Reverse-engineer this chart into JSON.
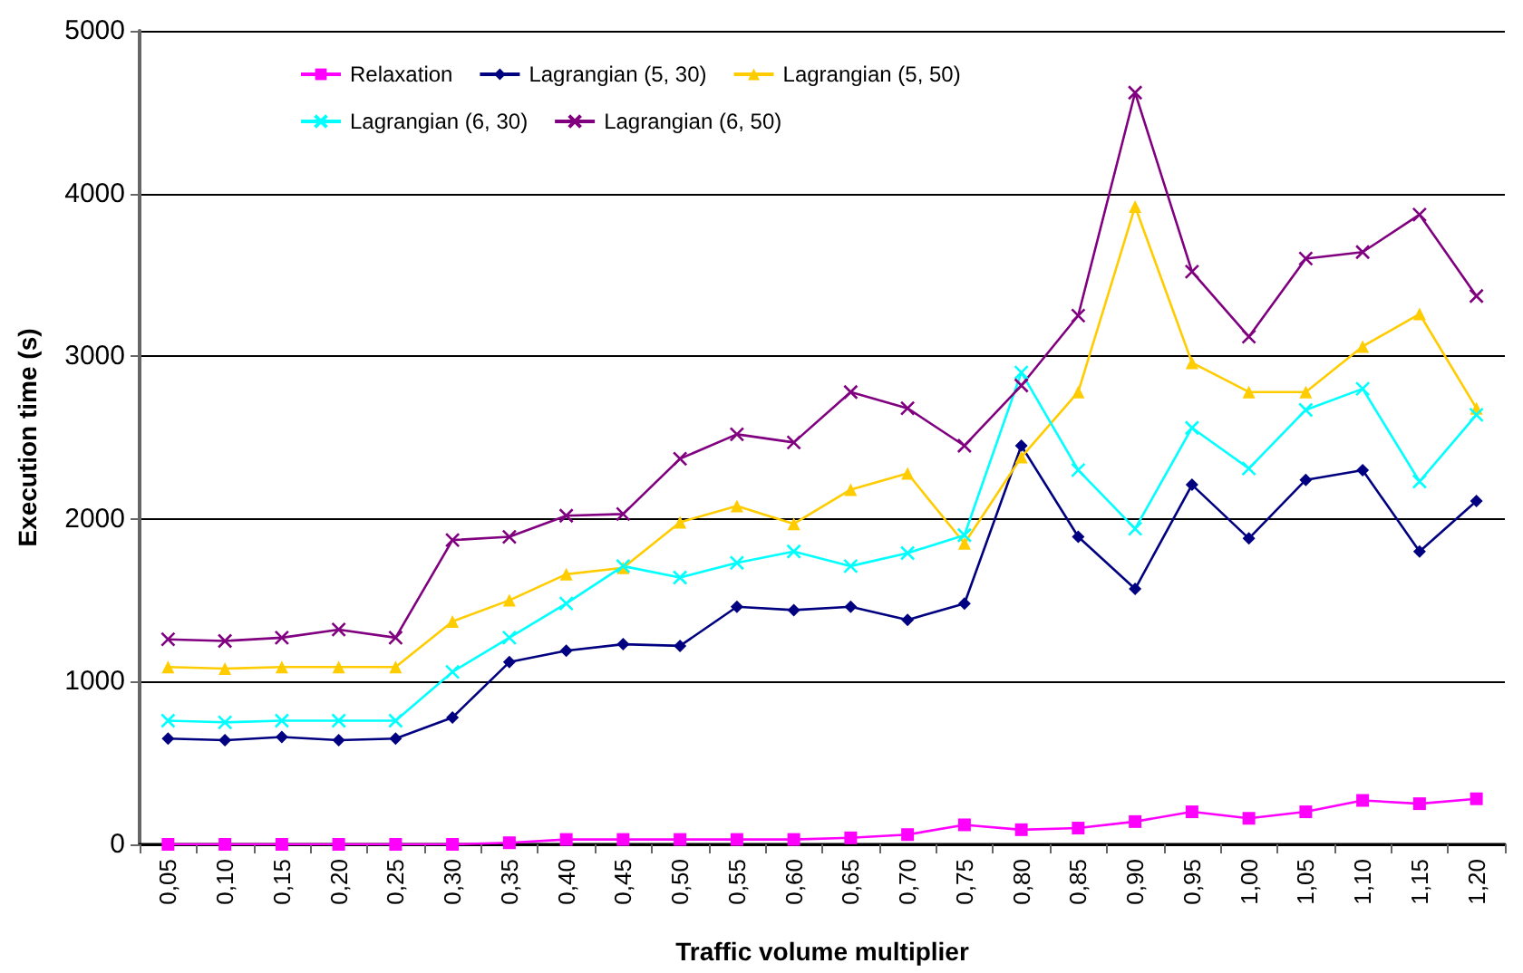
{
  "chart_data": {
    "type": "line",
    "xlabel": "Traffic volume multiplier",
    "ylabel": "Execution time (s)",
    "categories": [
      "0,05",
      "0,10",
      "0,15",
      "0,20",
      "0,25",
      "0,30",
      "0,35",
      "0,40",
      "0,45",
      "0,50",
      "0,55",
      "0,60",
      "0,65",
      "0,70",
      "0,75",
      "0,80",
      "0,85",
      "0,90",
      "0,95",
      "1,00",
      "1,05",
      "1,10",
      "1,15",
      "1,20"
    ],
    "series": [
      {
        "name": "Relaxation",
        "color": "#ff00ff",
        "marker": "square",
        "values": [
          0,
          0,
          0,
          0,
          0,
          0,
          10,
          30,
          30,
          30,
          30,
          30,
          40,
          60,
          120,
          90,
          100,
          140,
          200,
          160,
          200,
          270,
          250,
          280
        ]
      },
      {
        "name": "Lagrangian (5, 30)",
        "color": "#000080",
        "marker": "diamond",
        "values": [
          650,
          640,
          660,
          640,
          650,
          780,
          1120,
          1190,
          1230,
          1220,
          1460,
          1440,
          1460,
          1380,
          1480,
          2450,
          1890,
          1570,
          2210,
          1880,
          2240,
          2300,
          1800,
          2110
        ]
      },
      {
        "name": "Lagrangian (5, 50)",
        "color": "#ffcc00",
        "marker": "triangle",
        "values": [
          1090,
          1080,
          1090,
          1090,
          1090,
          1370,
          1500,
          1660,
          1700,
          1980,
          2080,
          1970,
          2180,
          2280,
          1850,
          2380,
          2780,
          3920,
          2960,
          2780,
          2780,
          3060,
          3260,
          2680
        ]
      },
      {
        "name": "Lagrangian (6, 30)",
        "color": "#00ffff",
        "marker": "cross",
        "values": [
          760,
          750,
          760,
          760,
          760,
          1060,
          1270,
          1480,
          1710,
          1640,
          1730,
          1800,
          1710,
          1790,
          1900,
          2900,
          2300,
          1940,
          2560,
          2310,
          2670,
          2800,
          2230,
          2640
        ]
      },
      {
        "name": "Lagrangian (6, 50)",
        "color": "#800080",
        "marker": "cross",
        "values": [
          1260,
          1250,
          1270,
          1320,
          1270,
          1870,
          1890,
          2020,
          2030,
          2370,
          2520,
          2470,
          2780,
          2680,
          2450,
          2820,
          3250,
          4620,
          3520,
          3120,
          3600,
          3640,
          3870,
          3370
        ]
      }
    ],
    "ylim": [
      0,
      5000
    ],
    "yticks": [
      0,
      1000,
      2000,
      3000,
      4000,
      5000
    ],
    "grid": "y",
    "legend": "top",
    "line_style": "solid"
  }
}
